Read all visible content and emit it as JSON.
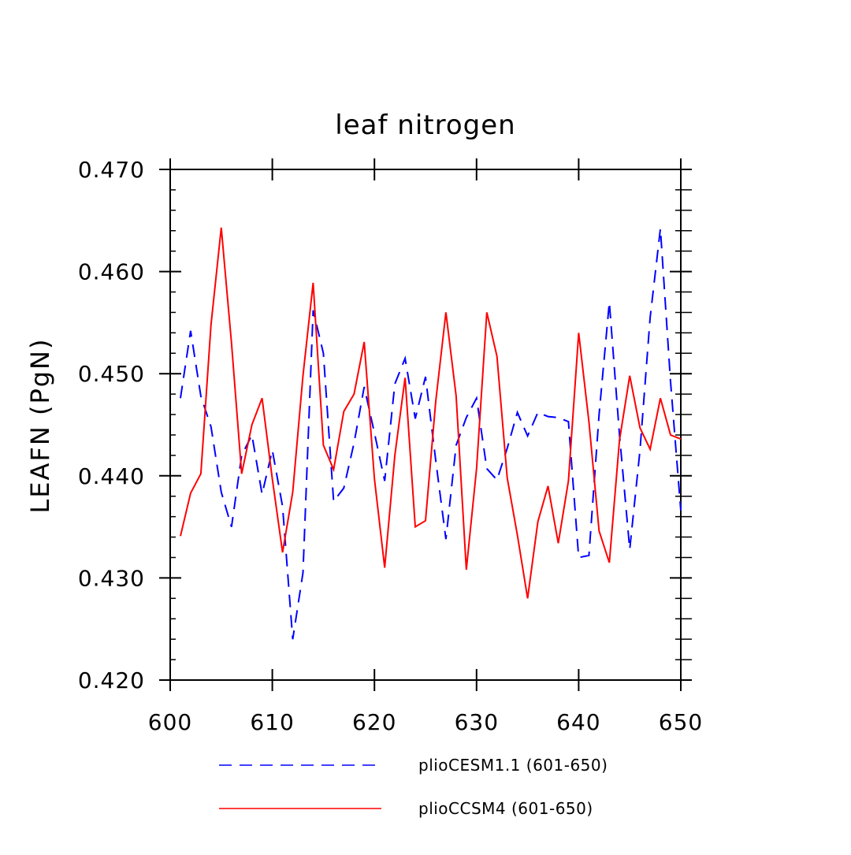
{
  "chart_data": {
    "type": "line",
    "title": "leaf nitrogen",
    "xlabel": "",
    "ylabel": "LEAFN  (PgN)",
    "xlim": [
      600,
      650
    ],
    "ylim": [
      0.42,
      0.47
    ],
    "xticks": [
      600,
      610,
      620,
      630,
      640,
      650
    ],
    "xtick_labels": [
      "600",
      "610",
      "620",
      "630",
      "640",
      "650"
    ],
    "yticks": [
      0.42,
      0.43,
      0.44,
      0.45,
      0.46,
      0.47
    ],
    "ytick_labels": [
      "0.420",
      "0.430",
      "0.440",
      "0.450",
      "0.460",
      "0.470"
    ],
    "x": [
      601,
      602,
      603,
      604,
      605,
      606,
      607,
      608,
      609,
      610,
      611,
      612,
      613,
      614,
      615,
      616,
      617,
      618,
      619,
      620,
      621,
      622,
      623,
      624,
      625,
      626,
      627,
      628,
      629,
      630,
      631,
      632,
      633,
      634,
      635,
      636,
      637,
      638,
      639,
      640,
      641,
      642,
      643,
      644,
      645,
      646,
      647,
      648,
      649,
      650
    ],
    "legend_position": "bottom",
    "series": [
      {
        "name": "plioCESM1.1 (601-650)",
        "color": "#0000ff",
        "style": "dashed",
        "values": [
          0.4476,
          0.4542,
          0.4478,
          0.4448,
          0.4384,
          0.435,
          0.442,
          0.444,
          0.4382,
          0.4425,
          0.437,
          0.424,
          0.4305,
          0.4562,
          0.452,
          0.4375,
          0.4388,
          0.4432,
          0.4487,
          0.4442,
          0.4395,
          0.449,
          0.4515,
          0.4456,
          0.4497,
          0.4415,
          0.4338,
          0.443,
          0.4457,
          0.4476,
          0.4407,
          0.4396,
          0.4427,
          0.4462,
          0.4439,
          0.4462,
          0.4458,
          0.4457,
          0.4453,
          0.432,
          0.4322,
          0.446,
          0.457,
          0.444,
          0.4328,
          0.4425,
          0.4555,
          0.4642,
          0.4492,
          0.4366
        ]
      },
      {
        "name": "plioCCSM4 (601-650)",
        "color": "#ff0000",
        "style": "solid",
        "values": [
          0.4341,
          0.4383,
          0.4402,
          0.4548,
          0.4643,
          0.453,
          0.4402,
          0.445,
          0.4476,
          0.4397,
          0.4325,
          0.4384,
          0.4498,
          0.4589,
          0.443,
          0.4406,
          0.4463,
          0.448,
          0.4531,
          0.4397,
          0.431,
          0.442,
          0.4496,
          0.435,
          0.4356,
          0.4473,
          0.456,
          0.4478,
          0.4308,
          0.4407,
          0.456,
          0.4517,
          0.4398,
          0.4342,
          0.428,
          0.4355,
          0.439,
          0.4334,
          0.4395,
          0.454,
          0.4453,
          0.4346,
          0.4315,
          0.4435,
          0.4498,
          0.4447,
          0.4426,
          0.4476,
          0.444,
          0.4436
        ]
      }
    ]
  }
}
